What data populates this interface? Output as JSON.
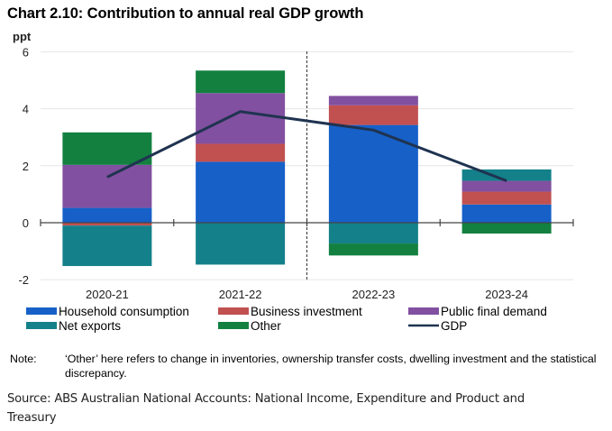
{
  "title": "Chart 2.10: Contribution to annual real GDP growth",
  "note": {
    "label": "Note:",
    "text": "‘Other’ here refers to change in inventories, ownership transfer costs, dwelling investment and the statistical discrepancy."
  },
  "source": "Source:  ABS Australian National Accounts: National Income, Expenditure and Product and Treasury",
  "chart_data": {
    "type": "bar",
    "stacked": true,
    "title": "Chart 2.10: Contribution to annual real GDP growth",
    "ylabel": "ppt",
    "xlabel": "",
    "ylim": [
      -2,
      6
    ],
    "yticks": [
      -2,
      0,
      2,
      4,
      6
    ],
    "grid": true,
    "legend_position": "bottom",
    "categories": [
      "2020-21",
      "2021-22",
      "2022-23",
      "2023-24"
    ],
    "vertical_divider_after_category": "2021-22",
    "series": [
      {
        "name": "Household consumption",
        "type": "bar",
        "color": "#1660c8",
        "values": [
          0.52,
          2.14,
          3.43,
          0.64
        ]
      },
      {
        "name": "Business investment",
        "type": "bar",
        "color": "#c15050",
        "values": [
          -0.1,
          0.63,
          0.69,
          0.45
        ]
      },
      {
        "name": "Public final demand",
        "type": "bar",
        "color": "#8250a0",
        "values": [
          1.51,
          1.78,
          0.33,
          0.38
        ]
      },
      {
        "name": "Net exports",
        "type": "bar",
        "color": "#13808a",
        "values": [
          -1.42,
          -1.47,
          -0.73,
          0.4
        ]
      },
      {
        "name": "Other",
        "type": "bar",
        "color": "#138040",
        "values": [
          1.14,
          0.79,
          -0.42,
          -0.38
        ]
      },
      {
        "name": "GDP",
        "type": "line",
        "color": "#1f3350",
        "values": [
          1.6,
          3.9,
          3.25,
          1.47
        ]
      }
    ]
  }
}
